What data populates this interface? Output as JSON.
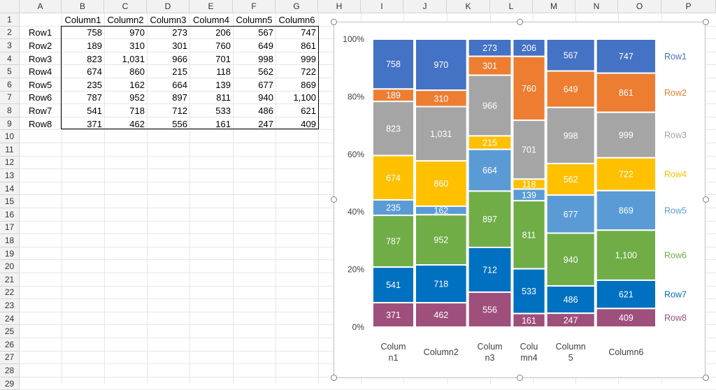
{
  "sheet": {
    "columns": [
      "A",
      "B",
      "C",
      "D",
      "E",
      "F",
      "G",
      "H",
      "I",
      "J",
      "K",
      "L",
      "M",
      "N",
      "O",
      "P"
    ],
    "rows": [
      "1",
      "2",
      "3",
      "4",
      "5",
      "6",
      "7",
      "8",
      "9",
      "10",
      "11",
      "12",
      "13",
      "14",
      "15",
      "16",
      "17",
      "18",
      "19",
      "20",
      "21",
      "22",
      "23",
      "24",
      "25",
      "26",
      "27",
      "28",
      "29"
    ],
    "table": {
      "headers": [
        "Column1",
        "Column2",
        "Column3",
        "Column4",
        "Column5",
        "Column6"
      ],
      "rows": [
        {
          "label": "Row1",
          "values": [
            "758",
            "970",
            "273",
            "206",
            "567",
            "747"
          ]
        },
        {
          "label": "Row2",
          "values": [
            "189",
            "310",
            "301",
            "760",
            "649",
            "861"
          ]
        },
        {
          "label": "Row3",
          "values": [
            "823",
            "1,031",
            "966",
            "701",
            "998",
            "999"
          ]
        },
        {
          "label": "Row4",
          "values": [
            "674",
            "860",
            "215",
            "118",
            "562",
            "722"
          ]
        },
        {
          "label": "Row5",
          "values": [
            "235",
            "162",
            "664",
            "139",
            "677",
            "869"
          ]
        },
        {
          "label": "Row6",
          "values": [
            "787",
            "952",
            "897",
            "811",
            "940",
            "1,100"
          ]
        },
        {
          "label": "Row7",
          "values": [
            "541",
            "718",
            "712",
            "533",
            "486",
            "621"
          ]
        },
        {
          "label": "Row8",
          "values": [
            "371",
            "462",
            "556",
            "161",
            "247",
            "409"
          ]
        }
      ]
    }
  },
  "chart_data": {
    "type": "bar",
    "subtype": "mekko-100-percent-stacked",
    "categories": [
      "Column1",
      "Column2",
      "Column3",
      "Column4",
      "Column5",
      "Column6"
    ],
    "category_labels": [
      [
        "Colum",
        "n1"
      ],
      [
        "Column2"
      ],
      [
        "Colum",
        "n3"
      ],
      [
        "Colu",
        "mn4"
      ],
      [
        "Column",
        "5"
      ],
      [
        "Column6"
      ]
    ],
    "series": [
      {
        "name": "Row1",
        "color": "#4472C4",
        "values": [
          758,
          970,
          273,
          206,
          567,
          747
        ]
      },
      {
        "name": "Row2",
        "color": "#ED7D31",
        "values": [
          189,
          310,
          301,
          760,
          649,
          861
        ]
      },
      {
        "name": "Row3",
        "color": "#A5A5A5",
        "values": [
          823,
          1031,
          966,
          701,
          998,
          999
        ]
      },
      {
        "name": "Row4",
        "color": "#FFC000",
        "values": [
          674,
          860,
          215,
          118,
          562,
          722
        ]
      },
      {
        "name": "Row5",
        "color": "#5B9BD5",
        "values": [
          235,
          162,
          664,
          139,
          677,
          869
        ]
      },
      {
        "name": "Row6",
        "color": "#70AD47",
        "values": [
          787,
          952,
          897,
          811,
          940,
          1100
        ]
      },
      {
        "name": "Row7",
        "color": "#0070C0",
        "values": [
          541,
          718,
          712,
          533,
          486,
          621
        ]
      },
      {
        "name": "Row8",
        "color": "#9E4F7B",
        "values": [
          371,
          462,
          556,
          161,
          247,
          409
        ]
      }
    ],
    "y_ticks": [
      "0%",
      "20%",
      "40%",
      "60%",
      "80%",
      "100%"
    ],
    "ylim": [
      0,
      100
    ],
    "legend": "right"
  }
}
